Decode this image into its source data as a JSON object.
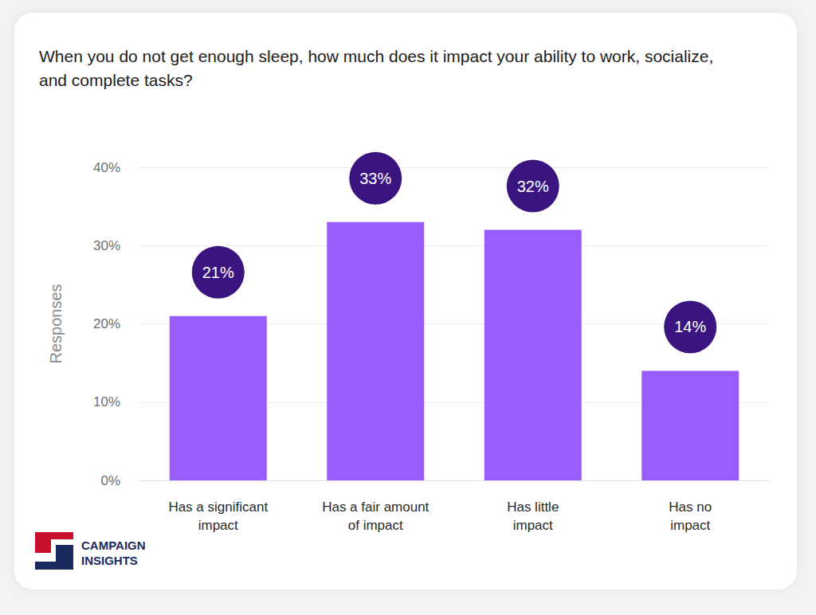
{
  "chart_data": {
    "type": "bar",
    "title": "When you do not get enough sleep, how much does it impact your ability to work, socialize, and complete tasks?",
    "y_label": "Responses",
    "categories": [
      "Has a significant\nimpact",
      "Has a fair amount\nof impact",
      "Has little\nimpact",
      "Has no\nimpact"
    ],
    "values": [
      21,
      33,
      32,
      14
    ],
    "value_labels": [
      "21%",
      "33%",
      "32%",
      "14%"
    ],
    "color": "#9b5cff",
    "ylim": [
      0,
      40
    ],
    "yticks": [
      {
        "value": 0,
        "label": "0%"
      },
      {
        "value": 10,
        "label": "10%"
      },
      {
        "value": 20,
        "label": "20%"
      },
      {
        "value": 30,
        "label": "30%"
      },
      {
        "value": 40,
        "label": "40%"
      }
    ],
    "grid": true,
    "data_labels": true,
    "annotations": [
      "CAMPAIGN",
      "INSIGHTS"
    ]
  }
}
